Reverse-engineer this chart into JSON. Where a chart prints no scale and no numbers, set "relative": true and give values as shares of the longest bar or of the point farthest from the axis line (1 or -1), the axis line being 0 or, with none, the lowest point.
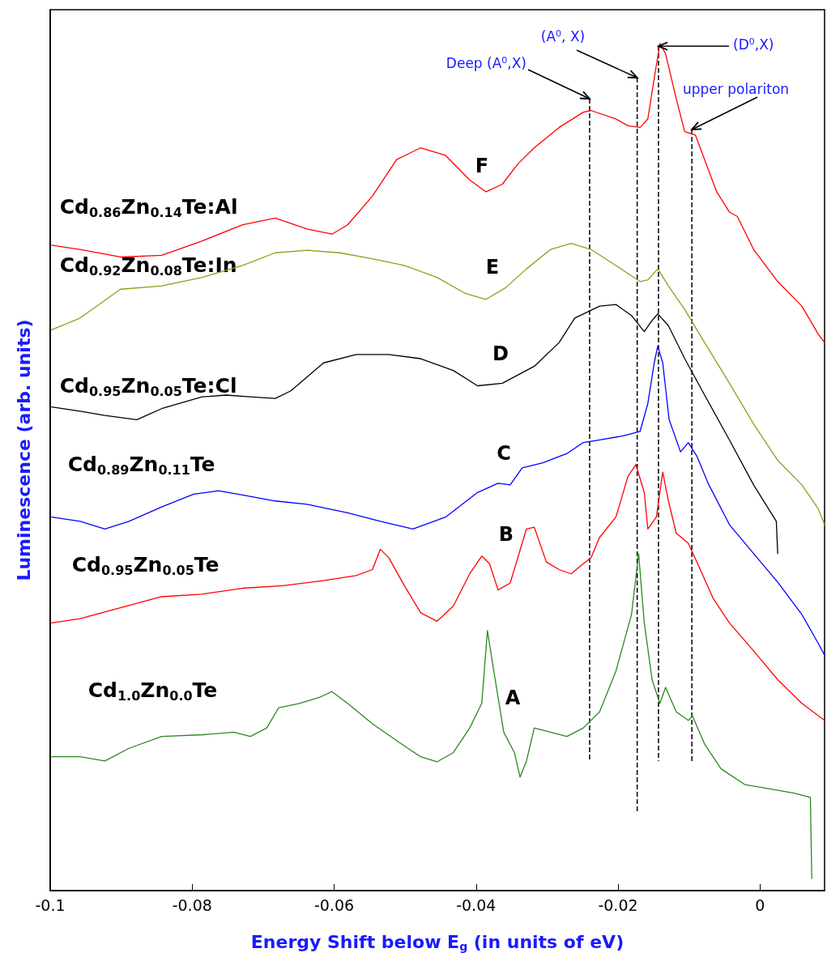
{
  "chart_data": {
    "type": "line",
    "relative": true,
    "tick_labels": "x",
    "marker": "none",
    "xlabel": "Energy Shift below E$_{g}$ (in units of eV)",
    "ylabel": "Luminescence (arb. units)",
    "xlim": [
      -0.1,
      0.0091
    ],
    "xticks": [
      -0.1,
      -0.08,
      -0.06,
      -0.04,
      -0.02,
      0
    ],
    "series": [
      {
        "name": "Cd$_{0.86}$Zn$_{0.14}$Te:Al",
        "color": "#ff0000",
        "x": [
          -0.0998,
          -0.0958,
          -0.0901,
          -0.0843,
          -0.0786,
          -0.0729,
          -0.0683,
          -0.0638,
          -0.0603,
          -0.0581,
          -0.0546,
          -0.0512,
          -0.0478,
          -0.0443,
          -0.0409,
          -0.0386,
          -0.0363,
          -0.0341,
          -0.0318,
          -0.0283,
          -0.0249,
          -0.0238,
          -0.0203,
          -0.0186,
          -0.0169,
          -0.0158,
          -0.0149,
          -0.0141,
          -0.0133,
          -0.0118,
          -0.0106,
          -0.0091,
          -0.0078,
          -0.0061,
          -0.0043,
          -0.0032,
          -0.0009,
          0.0025,
          0.0059,
          0.0082,
          0.0091
        ],
        "values": [
          0.762,
          0.757,
          0.748,
          0.75,
          0.767,
          0.786,
          0.794,
          0.781,
          0.775,
          0.786,
          0.82,
          0.863,
          0.877,
          0.868,
          0.839,
          0.825,
          0.834,
          0.858,
          0.877,
          0.901,
          0.919,
          0.921,
          0.911,
          0.903,
          0.901,
          0.911,
          0.959,
          1.0,
          0.988,
          0.935,
          0.896,
          0.892,
          0.863,
          0.825,
          0.801,
          0.796,
          0.757,
          0.719,
          0.69,
          0.657,
          0.647
        ]
      },
      {
        "name": "Cd$_{0.92}$Zn$_{0.08}$Te:In",
        "color": "#9a9a1a",
        "x": [
          -0.0998,
          -0.0958,
          -0.0901,
          -0.0843,
          -0.0786,
          -0.0729,
          -0.0683,
          -0.0638,
          -0.0592,
          -0.0546,
          -0.0501,
          -0.0455,
          -0.0415,
          -0.0386,
          -0.0358,
          -0.0329,
          -0.0295,
          -0.0266,
          -0.0238,
          -0.0203,
          -0.0169,
          -0.0158,
          -0.0144,
          -0.0129,
          -0.0106,
          -0.0078,
          -0.0043,
          -0.0009,
          0.0025,
          0.0059,
          0.0082,
          0.0091
        ],
        "values": [
          0.662,
          0.676,
          0.71,
          0.714,
          0.724,
          0.738,
          0.753,
          0.756,
          0.753,
          0.746,
          0.738,
          0.724,
          0.705,
          0.698,
          0.712,
          0.734,
          0.757,
          0.764,
          0.757,
          0.738,
          0.719,
          0.721,
          0.734,
          0.714,
          0.686,
          0.647,
          0.599,
          0.551,
          0.508,
          0.479,
          0.451,
          0.432
        ]
      },
      {
        "name": "Cd$_{0.95}$Zn$_{0.05}$Te:Cl",
        "color": "#000000",
        "x": [
          -0.0998,
          -0.0958,
          -0.0923,
          -0.0878,
          -0.0843,
          -0.0786,
          -0.0752,
          -0.0718,
          -0.0683,
          -0.0661,
          -0.0615,
          -0.0569,
          -0.0523,
          -0.0478,
          -0.0432,
          -0.0398,
          -0.0363,
          -0.0318,
          -0.0283,
          -0.0261,
          -0.0226,
          -0.0203,
          -0.0181,
          -0.0163,
          -0.0154,
          -0.0144,
          -0.0129,
          -0.0106,
          -0.0078,
          -0.0043,
          -0.0009,
          0.0023,
          0.0025
        ],
        "values": [
          0.571,
          0.566,
          0.561,
          0.556,
          0.569,
          0.583,
          0.585,
          0.583,
          0.581,
          0.59,
          0.623,
          0.633,
          0.633,
          0.628,
          0.614,
          0.596,
          0.599,
          0.619,
          0.647,
          0.676,
          0.69,
          0.692,
          0.679,
          0.66,
          0.671,
          0.681,
          0.667,
          0.628,
          0.585,
          0.532,
          0.479,
          0.436,
          0.398
        ]
      },
      {
        "name": "Cd$_{0.89}$Zn$_{0.11}$Te",
        "color": "#0000ff",
        "x": [
          -0.0998,
          -0.0958,
          -0.0923,
          -0.0889,
          -0.0843,
          -0.0798,
          -0.0763,
          -0.0729,
          -0.0683,
          -0.0638,
          -0.0581,
          -0.0535,
          -0.0489,
          -0.0443,
          -0.0398,
          -0.0369,
          -0.0352,
          -0.0335,
          -0.0306,
          -0.0272,
          -0.0249,
          -0.0226,
          -0.0192,
          -0.0169,
          -0.0158,
          -0.0149,
          -0.0144,
          -0.0137,
          -0.0128,
          -0.0112,
          -0.0101,
          -0.0089,
          -0.0072,
          -0.0043,
          -0.0009,
          0.0025,
          0.0059,
          0.0082,
          0.0091
        ],
        "values": [
          0.441,
          0.436,
          0.427,
          0.436,
          0.453,
          0.468,
          0.472,
          0.467,
          0.46,
          0.456,
          0.446,
          0.436,
          0.427,
          0.441,
          0.47,
          0.481,
          0.479,
          0.499,
          0.505,
          0.516,
          0.529,
          0.532,
          0.537,
          0.542,
          0.575,
          0.623,
          0.643,
          0.623,
          0.556,
          0.518,
          0.529,
          0.513,
          0.479,
          0.432,
          0.398,
          0.364,
          0.326,
          0.292,
          0.278
        ]
      },
      {
        "name": "Cd$_{0.95}$Zn$_{0.05}$Te",
        "color": "#ff0000",
        "x": [
          -0.0998,
          -0.0958,
          -0.0901,
          -0.0843,
          -0.0786,
          -0.0729,
          -0.0672,
          -0.0615,
          -0.0569,
          -0.0546,
          -0.0535,
          -0.0523,
          -0.0501,
          -0.0478,
          -0.0455,
          -0.0432,
          -0.0409,
          -0.0392,
          -0.0381,
          -0.0369,
          -0.0352,
          -0.0329,
          -0.0318,
          -0.0301,
          -0.0283,
          -0.0266,
          -0.0249,
          -0.0238,
          -0.0226,
          -0.0203,
          -0.0186,
          -0.0175,
          -0.0163,
          -0.0158,
          -0.0146,
          -0.0137,
          -0.0129,
          -0.0118,
          -0.0101,
          -0.0089,
          -0.0066,
          -0.0043,
          -0.0009,
          0.0025,
          0.0059,
          0.0091
        ],
        "values": [
          0.316,
          0.321,
          0.334,
          0.347,
          0.35,
          0.357,
          0.36,
          0.366,
          0.372,
          0.379,
          0.403,
          0.393,
          0.36,
          0.328,
          0.318,
          0.336,
          0.374,
          0.395,
          0.386,
          0.355,
          0.363,
          0.427,
          0.429,
          0.388,
          0.379,
          0.374,
          0.386,
          0.393,
          0.417,
          0.441,
          0.489,
          0.503,
          0.47,
          0.427,
          0.441,
          0.494,
          0.46,
          0.422,
          0.41,
          0.388,
          0.345,
          0.316,
          0.283,
          0.249,
          0.221,
          0.201
        ]
      },
      {
        "name": "Cd$_{1.0}$Zn$_{0.0}$Te",
        "color": "#2a8a1e",
        "x": [
          -0.0998,
          -0.0958,
          -0.0923,
          -0.0889,
          -0.0843,
          -0.0786,
          -0.0741,
          -0.0718,
          -0.0695,
          -0.0678,
          -0.0649,
          -0.0621,
          -0.0603,
          -0.0581,
          -0.0546,
          -0.0512,
          -0.0478,
          -0.0455,
          -0.0432,
          -0.0409,
          -0.0392,
          -0.0384,
          -0.0375,
          -0.0361,
          -0.0346,
          -0.0338,
          -0.0329,
          -0.0318,
          -0.0295,
          -0.0272,
          -0.0249,
          -0.0226,
          -0.0203,
          -0.0181,
          -0.0171,
          -0.0163,
          -0.0152,
          -0.0141,
          -0.0133,
          -0.0118,
          -0.0101,
          -0.0095,
          -0.0078,
          -0.0055,
          -0.0021,
          0.0014,
          0.0048,
          0.0071,
          0.0073
        ],
        "values": [
          0.158,
          0.158,
          0.153,
          0.168,
          0.182,
          0.184,
          0.187,
          0.182,
          0.192,
          0.216,
          0.221,
          0.228,
          0.235,
          0.221,
          0.197,
          0.177,
          0.158,
          0.152,
          0.163,
          0.192,
          0.221,
          0.307,
          0.259,
          0.187,
          0.163,
          0.134,
          0.153,
          0.192,
          0.187,
          0.182,
          0.192,
          0.211,
          0.259,
          0.326,
          0.398,
          0.316,
          0.249,
          0.221,
          0.24,
          0.211,
          0.201,
          0.206,
          0.173,
          0.144,
          0.125,
          0.12,
          0.115,
          0.11,
          0.014
        ]
      }
    ],
    "ref_lines": [
      {
        "axis": "x",
        "value": -0.024,
        "color": "#000000",
        "line_style": "dashed",
        "label": "Deep (A$^{0}$,X)"
      },
      {
        "axis": "x",
        "value": -0.0173,
        "color": "#000000",
        "line_style": "dashed",
        "label": "(A$^{0}$, X)"
      },
      {
        "axis": "x",
        "value": -0.0143,
        "color": "#000000",
        "line_style": "dashed",
        "label": "(D$^{0}$,X)"
      },
      {
        "axis": "x",
        "value": -0.0096,
        "color": "#000000",
        "line_style": "dashed",
        "label": "upper polariton"
      }
    ],
    "annotations": [
      "F",
      "E",
      "D",
      "C",
      "B",
      "A"
    ]
  }
}
